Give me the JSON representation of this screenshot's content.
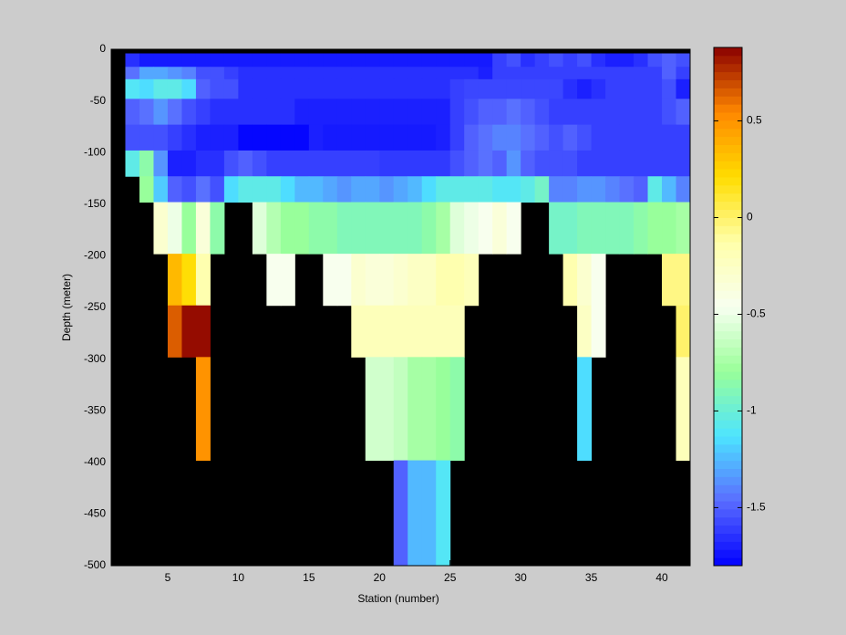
{
  "chart_data": {
    "type": "heatmap",
    "xlabel": "Station (number)",
    "ylabel": "Depth (meter)",
    "xlim": [
      1,
      42
    ],
    "ylim": [
      -500,
      0
    ],
    "xticks": [
      5,
      10,
      15,
      20,
      25,
      30,
      35,
      40
    ],
    "yticks": [
      0,
      -50,
      -100,
      -150,
      -200,
      -250,
      -300,
      -350,
      -400,
      -450,
      -500
    ],
    "x_edges": [
      2,
      3,
      4,
      5,
      6,
      7,
      8,
      9,
      10,
      11,
      12,
      13,
      14,
      15,
      16,
      17,
      18,
      19,
      20,
      21,
      22,
      23,
      24,
      25,
      26,
      27,
      28,
      29,
      30,
      31,
      32,
      33,
      34,
      35,
      36,
      37,
      38,
      39,
      40,
      41,
      42
    ],
    "y_edges": [
      -4,
      -17,
      -29,
      -48,
      -73,
      -98,
      -123,
      -148,
      -198,
      -248,
      -298,
      -398,
      -500
    ],
    "background": "#000000",
    "clim": [
      -1.8,
      0.88
    ],
    "colorbar_ticks": [
      0.5,
      0,
      -0.5,
      -1,
      -1.5
    ],
    "colormap": [
      "#0000ff",
      "#5a6cff",
      "#4de4ff",
      "#99ff99",
      "#f8fff0",
      "#ffffaa",
      "#ffdd00",
      "#ff8800",
      "#8b0000"
    ],
    "values": [
      [
        -1.65,
        -1.72,
        -1.72,
        -1.72,
        -1.72,
        -1.72,
        -1.72,
        -1.72,
        -1.72,
        -1.72,
        -1.72,
        -1.72,
        -1.72,
        -1.72,
        -1.72,
        -1.72,
        -1.72,
        -1.72,
        -1.72,
        -1.72,
        -1.72,
        -1.72,
        -1.72,
        -1.72,
        -1.72,
        -1.72,
        -1.6,
        -1.55,
        -1.65,
        -1.6,
        -1.55,
        -1.6,
        -1.55,
        -1.65,
        -1.7,
        -1.7,
        -1.65,
        -1.55,
        -1.5,
        -1.55
      ],
      [
        -1.45,
        -1.3,
        -1.3,
        -1.35,
        -1.4,
        -1.55,
        -1.55,
        -1.6,
        -1.65,
        -1.65,
        -1.65,
        -1.65,
        -1.65,
        -1.65,
        -1.65,
        -1.65,
        -1.65,
        -1.65,
        -1.65,
        -1.65,
        -1.65,
        -1.65,
        -1.65,
        -1.65,
        -1.65,
        -1.7,
        -1.6,
        -1.6,
        -1.6,
        -1.6,
        -1.6,
        -1.6,
        -1.6,
        -1.6,
        -1.6,
        -1.6,
        -1.6,
        -1.6,
        -1.5,
        -1.6
      ],
      [
        -1.1,
        -1.15,
        -1.05,
        -1.05,
        -1.15,
        -1.5,
        -1.55,
        -1.55,
        -1.65,
        -1.65,
        -1.65,
        -1.65,
        -1.65,
        -1.65,
        -1.65,
        -1.65,
        -1.65,
        -1.65,
        -1.65,
        -1.65,
        -1.65,
        -1.65,
        -1.65,
        -1.6,
        -1.58,
        -1.58,
        -1.58,
        -1.58,
        -1.58,
        -1.58,
        -1.58,
        -1.65,
        -1.7,
        -1.65,
        -1.6,
        -1.6,
        -1.6,
        -1.6,
        -1.55,
        -1.7
      ],
      [
        -1.5,
        -1.45,
        -1.35,
        -1.45,
        -1.55,
        -1.6,
        -1.65,
        -1.65,
        -1.65,
        -1.65,
        -1.65,
        -1.65,
        -1.7,
        -1.7,
        -1.7,
        -1.7,
        -1.7,
        -1.7,
        -1.7,
        -1.7,
        -1.7,
        -1.7,
        -1.7,
        -1.6,
        -1.55,
        -1.5,
        -1.5,
        -1.45,
        -1.5,
        -1.55,
        -1.6,
        -1.6,
        -1.6,
        -1.6,
        -1.6,
        -1.6,
        -1.6,
        -1.6,
        -1.55,
        -1.5
      ],
      [
        -1.55,
        -1.55,
        -1.55,
        -1.6,
        -1.65,
        -1.7,
        -1.7,
        -1.7,
        -1.78,
        -1.78,
        -1.78,
        -1.78,
        -1.78,
        -1.7,
        -1.72,
        -1.72,
        -1.72,
        -1.72,
        -1.72,
        -1.72,
        -1.72,
        -1.72,
        -1.7,
        -1.6,
        -1.5,
        -1.45,
        -1.4,
        -1.4,
        -1.45,
        -1.5,
        -1.55,
        -1.5,
        -1.55,
        -1.6,
        -1.6,
        -1.6,
        -1.6,
        -1.6,
        -1.6,
        -1.6
      ],
      [
        -1.05,
        -0.85,
        -1.35,
        -1.7,
        -1.7,
        -1.65,
        -1.65,
        -1.55,
        -1.5,
        -1.55,
        -1.6,
        -1.6,
        -1.6,
        -1.6,
        -1.6,
        -1.6,
        -1.6,
        -1.6,
        -1.62,
        -1.62,
        -1.62,
        -1.62,
        -1.62,
        -1.55,
        -1.5,
        -1.45,
        -1.5,
        -1.35,
        -1.5,
        -1.55,
        -1.55,
        -1.55,
        -1.6,
        -1.6,
        -1.6,
        -1.6,
        -1.6,
        -1.6,
        -1.6,
        -1.6
      ],
      [
        null,
        -0.8,
        -1.2,
        -1.5,
        -1.55,
        -1.45,
        -1.55,
        -1.15,
        -1.05,
        -1.05,
        -1.05,
        -1.15,
        -1.25,
        -1.25,
        -1.3,
        -1.35,
        -1.3,
        -1.3,
        -1.35,
        -1.3,
        -1.25,
        -1.15,
        -1.05,
        -1.05,
        -1.05,
        -1.05,
        -1.1,
        -1.1,
        -1.05,
        -0.95,
        -1.4,
        -1.4,
        -1.35,
        -1.35,
        -1.4,
        -1.45,
        -1.5,
        -1.05,
        -1.25,
        -1.4
      ],
      [
        null,
        null,
        -0.3,
        -0.5,
        -0.8,
        -0.35,
        -0.85,
        null,
        null,
        -0.55,
        -0.7,
        -0.8,
        -0.8,
        -0.85,
        -0.85,
        -0.9,
        -0.9,
        -0.9,
        -0.9,
        -0.9,
        -0.9,
        -0.85,
        -0.75,
        -0.55,
        -0.5,
        -0.45,
        -0.35,
        -0.45,
        null,
        null,
        -0.95,
        -0.95,
        -0.9,
        -0.9,
        -0.9,
        -0.9,
        -0.85,
        -0.8,
        -0.8,
        -0.75
      ],
      [
        null,
        null,
        null,
        0.35,
        0.2,
        -0.15,
        null,
        null,
        null,
        null,
        -0.45,
        -0.45,
        null,
        null,
        -0.45,
        -0.45,
        -0.3,
        -0.35,
        -0.35,
        -0.3,
        -0.25,
        -0.25,
        -0.15,
        -0.15,
        -0.2,
        null,
        null,
        null,
        null,
        null,
        null,
        -0.15,
        -0.3,
        -0.45,
        null,
        null,
        null,
        null,
        -0.05,
        -0.05
      ],
      [
        null,
        null,
        null,
        0.65,
        0.85,
        0.85,
        null,
        null,
        null,
        null,
        null,
        null,
        null,
        null,
        null,
        null,
        -0.2,
        -0.2,
        -0.2,
        -0.2,
        -0.2,
        -0.2,
        -0.2,
        -0.2,
        null,
        null,
        null,
        null,
        null,
        null,
        null,
        null,
        -0.25,
        -0.45,
        null,
        null,
        null,
        null,
        null,
        0
      ],
      [
        null,
        null,
        null,
        null,
        null,
        0.5,
        null,
        null,
        null,
        null,
        null,
        null,
        null,
        null,
        null,
        null,
        null,
        -0.6,
        -0.6,
        -0.65,
        -0.75,
        -0.75,
        -0.8,
        -0.85,
        null,
        null,
        null,
        null,
        null,
        null,
        null,
        null,
        -1.15,
        null,
        null,
        null,
        null,
        null,
        null,
        -0.2
      ],
      [
        null,
        null,
        null,
        null,
        null,
        null,
        null,
        null,
        null,
        null,
        null,
        null,
        null,
        null,
        null,
        null,
        null,
        null,
        null,
        -1.5,
        -1.25,
        -1.25,
        -1.1,
        null,
        null,
        null,
        null,
        null,
        null,
        null,
        null,
        null,
        null,
        null,
        null,
        null,
        null,
        null,
        null,
        null
      ]
    ]
  }
}
